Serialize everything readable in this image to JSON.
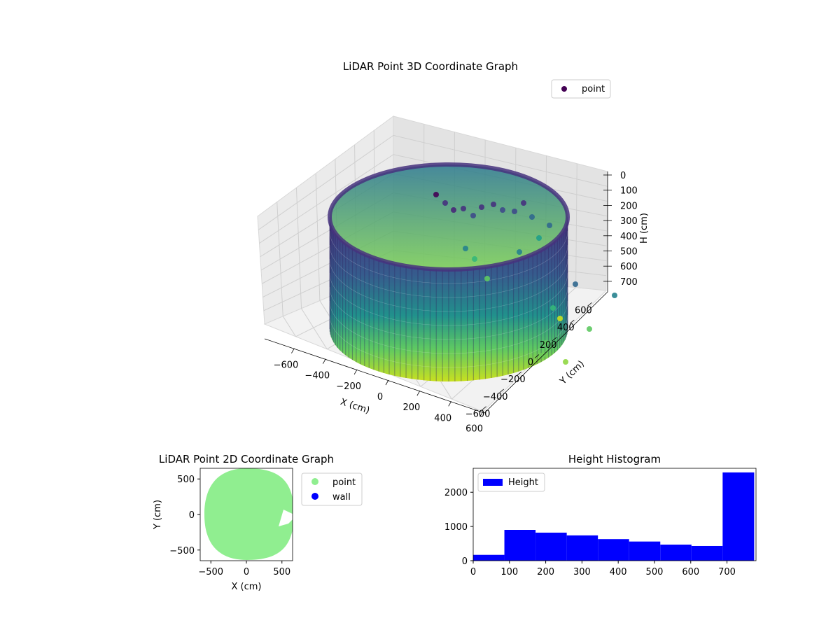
{
  "colors": {
    "viridis_dark": "#440154",
    "viridis_light": "#c8e020",
    "scatter_point": "#90ee90",
    "wall": "#0000ff",
    "histogram": "#0000ff"
  },
  "chart_data": [
    {
      "type": "scatter",
      "projection": "3d",
      "title": "LiDAR Point 3D Coordinate Graph",
      "xlabel": "X (cm)",
      "ylabel": "Y (cm)",
      "zlabel": "H (cm)",
      "x_ticks": [
        "−600",
        "−400",
        "−200",
        "0",
        "200",
        "400",
        "600"
      ],
      "y_ticks": [
        "−600",
        "−400",
        "−200",
        "0",
        "200",
        "400",
        "600"
      ],
      "z_ticks": [
        "0",
        "100",
        "200",
        "300",
        "400",
        "500",
        "600",
        "700"
      ],
      "xlim": [
        -650,
        650
      ],
      "ylim": [
        -650,
        650
      ],
      "zlim": [
        780,
        0
      ],
      "z_axis_inverted": true,
      "colormap": "viridis",
      "grid": true,
      "legend": {
        "position": "top-right",
        "entries": [
          "point"
        ]
      },
      "shape": {
        "description_ring_center": [
          0,
          0
        ],
        "radius": 600,
        "height_range": [
          0,
          750
        ]
      }
    },
    {
      "type": "scatter",
      "title": "LiDAR Point 2D Coordinate Graph",
      "xlabel": "X (cm)",
      "ylabel": "Y (cm)",
      "x_ticks": [
        "−500",
        "0",
        "500"
      ],
      "y_ticks": [
        "500",
        "0",
        "−500"
      ],
      "xlim": [
        -650,
        650
      ],
      "ylim": [
        -650,
        650
      ],
      "grid": false,
      "legend": {
        "position": "outside-right",
        "entries": [
          "point",
          "wall"
        ]
      },
      "series": [
        {
          "name": "point",
          "color": "#90ee90",
          "shape": "disc",
          "radius": 600
        },
        {
          "name": "wall",
          "color": "#0000ff",
          "values": []
        }
      ]
    },
    {
      "type": "bar",
      "subtype": "histogram",
      "title": "Height Histogram",
      "xlabel": "",
      "ylabel": "",
      "x_ticks": [
        "0",
        "100",
        "200",
        "300",
        "400",
        "500",
        "600",
        "700"
      ],
      "y_ticks": [
        "0",
        "1000",
        "2000"
      ],
      "xlim": [
        0,
        780
      ],
      "ylim": [
        0,
        2700
      ],
      "legend": {
        "position": "top-left",
        "entries": [
          "Height"
        ]
      },
      "series": [
        {
          "name": "Height",
          "bin_edges": [
            0,
            86,
            172,
            258,
            344,
            430,
            516,
            602,
            688,
            775
          ],
          "values": [
            170,
            900,
            820,
            740,
            630,
            560,
            470,
            430,
            2580
          ]
        }
      ]
    }
  ]
}
